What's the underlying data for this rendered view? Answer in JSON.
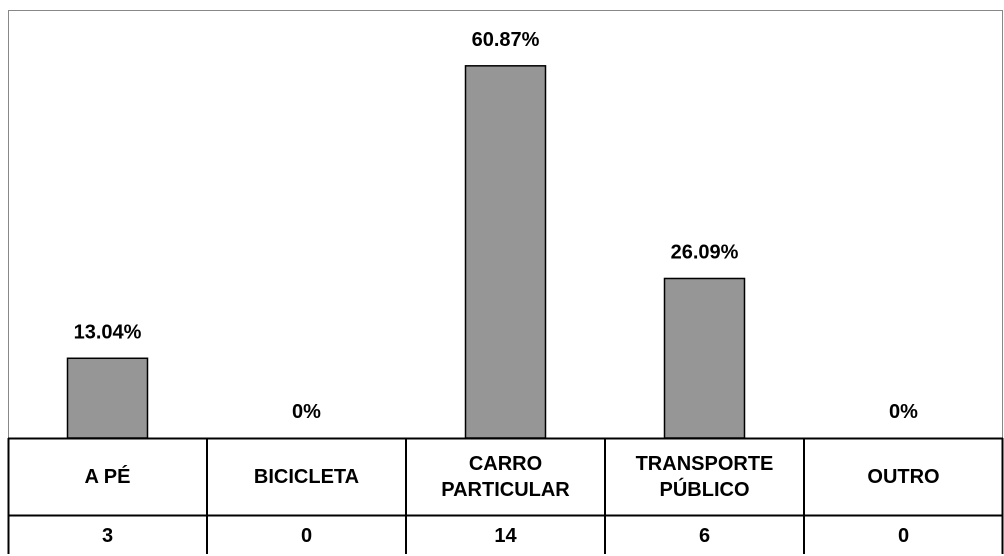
{
  "chart_data": {
    "type": "bar",
    "categories": [
      "A PÉ",
      "BICICLETA",
      "CARRO PARTICULAR",
      "TRANSPORTE PÚBLICO",
      "OUTRO"
    ],
    "values": [
      13.04,
      0,
      60.87,
      26.09,
      0
    ],
    "value_labels": [
      "13.04%",
      "0%",
      "60.87%",
      "26.09%",
      "0%"
    ],
    "table_values": [
      3,
      0,
      14,
      6,
      0
    ],
    "color": "#969696",
    "ylim": [
      0,
      70
    ]
  }
}
